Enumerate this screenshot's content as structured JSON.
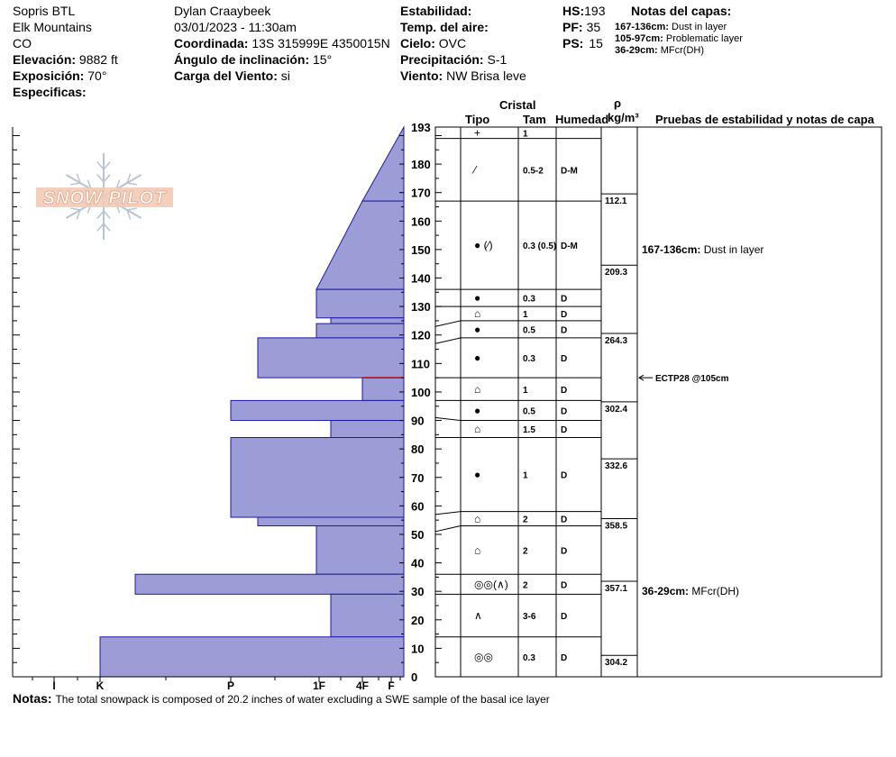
{
  "header": {
    "site": "Sopris BTL",
    "range": "Elk Mountains",
    "state": "CO",
    "elevation_label": "Elevación:",
    "elevation_value": "9882 ft",
    "aspect_label": "Exposición:",
    "aspect_value": "70°",
    "specifics_label": "Especificas:",
    "observer": "Dylan Craaybeek",
    "datetime": "03/01/2023 - 11:30am",
    "coord_label": "Coordinada:",
    "coord_value": "13S 315999E 4350015N",
    "slope_label": "Ángulo de inclinación:",
    "slope_value": "15°",
    "wind_load_label": "Carga del Viento:",
    "wind_load_value": "si",
    "stability_label": "Estabilidad:",
    "airtemp_label": "Temp. del aire:",
    "sky_label": "Cielo:",
    "sky_value": "OVC",
    "precip_label": "Precipitación:",
    "precip_value": "S-1",
    "wind_label": "Viento:",
    "wind_value": "NW Brisa leve",
    "hs_label": "HS:",
    "hs_value": "193",
    "pf_label": "PF:",
    "pf_value": "35",
    "ps_label": "PS:",
    "ps_value": "15",
    "layer_notes_title": "Notas del capas:",
    "layer_notes": [
      {
        "range": "167-136cm:",
        "text": "Dust in layer"
      },
      {
        "range": "105-97cm:",
        "text": "Problematic layer"
      },
      {
        "range": "36-29cm:",
        "text": "MFcr(DH)"
      }
    ]
  },
  "logo_text": "SNOW PILOT",
  "columns": {
    "crystal": "Cristal",
    "type": "Tipo",
    "size": "Tam",
    "moisture": "Humedad",
    "rho": "ρ",
    "density_unit": "kg/m³",
    "tests": "Pruebas de estabilidad y notas de capa"
  },
  "hardness_labels": [
    "I",
    "K",
    "P",
    "1F",
    "4F",
    "F"
  ],
  "height_ticks": [
    "193",
    "180",
    "170",
    "160",
    "150",
    "140",
    "130",
    "120",
    "110",
    "100",
    "90",
    "80",
    "70",
    "60",
    "50",
    "40",
    "30",
    "20",
    "10",
    "0"
  ],
  "chart_data": {
    "type": "snow_profile",
    "total_height_cm": 193,
    "hardness_profile": [
      {
        "top": 193,
        "bottom": 167,
        "hardness_top": "F",
        "hardness_bottom": "4F"
      },
      {
        "top": 167,
        "bottom": 136,
        "hardness_top": "4F",
        "hardness_bottom": "1F"
      },
      {
        "top": 136,
        "bottom": 126,
        "hardness": "1F"
      },
      {
        "top": 126,
        "bottom": 124,
        "hardness": "1F+"
      },
      {
        "top": 124,
        "bottom": 119,
        "hardness": "1F"
      },
      {
        "top": 119,
        "bottom": 105,
        "hardness": "P+"
      },
      {
        "top": 105,
        "bottom": 97,
        "hardness": "4F"
      },
      {
        "top": 97,
        "bottom": 90,
        "hardness": "P"
      },
      {
        "top": 90,
        "bottom": 84,
        "hardness": "1F+"
      },
      {
        "top": 84,
        "bottom": 56,
        "hardness": "P"
      },
      {
        "top": 56,
        "bottom": 53,
        "hardness": "P+"
      },
      {
        "top": 53,
        "bottom": 36,
        "hardness": "1F"
      },
      {
        "top": 36,
        "bottom": 29,
        "hardness": "K+"
      },
      {
        "top": 29,
        "bottom": 14,
        "hardness": "1F+"
      },
      {
        "top": 14,
        "bottom": 0,
        "hardness": "K"
      }
    ],
    "critical_layer_cm": 105,
    "layers": [
      {
        "top": 193,
        "bottom": 189,
        "type": "+",
        "size": "1",
        "moisture": ""
      },
      {
        "top": 189,
        "bottom": 167,
        "type": "⁄",
        "size": "0.5-2",
        "moisture": "D-M"
      },
      {
        "top": 167,
        "bottom": 136,
        "type": "● (⁄)",
        "size": "0.3 (0.5)",
        "moisture": "D-M"
      },
      {
        "top": 136,
        "bottom": 130,
        "type": "●",
        "size": "0.3",
        "moisture": "D"
      },
      {
        "top": 130,
        "bottom": 123,
        "type": "⌂",
        "size": "1",
        "moisture": "D"
      },
      {
        "top": 123,
        "bottom": 117,
        "type": "●",
        "size": "0.5",
        "moisture": "D"
      },
      {
        "top": 117,
        "bottom": 105,
        "type": "●",
        "size": "0.3",
        "moisture": "D"
      },
      {
        "top": 105,
        "bottom": 97,
        "type": "⌂",
        "size": "1",
        "moisture": "D"
      },
      {
        "top": 97,
        "bottom": 91,
        "type": "●",
        "size": "0.5",
        "moisture": "D"
      },
      {
        "top": 91,
        "bottom": 84,
        "type": "⌂",
        "size": "1.5",
        "moisture": "D"
      },
      {
        "top": 84,
        "bottom": 57,
        "type": "●",
        "size": "1",
        "moisture": "D"
      },
      {
        "top": 57,
        "bottom": 51,
        "type": "⌂",
        "size": "2",
        "moisture": "D"
      },
      {
        "top": 51,
        "bottom": 36,
        "type": "⌂",
        "size": "2",
        "moisture": "D"
      },
      {
        "top": 36,
        "bottom": 29,
        "type": "◎◎(∧)",
        "size": "2",
        "moisture": "D"
      },
      {
        "top": 29,
        "bottom": 14,
        "type": "∧",
        "size": "3-6",
        "moisture": "D"
      },
      {
        "top": 14,
        "bottom": 0,
        "type": "◎◎",
        "size": "0.3",
        "moisture": "D"
      }
    ],
    "boundary_depths": [
      189,
      167,
      136,
      130,
      123,
      117,
      105,
      97,
      91,
      84,
      57,
      51,
      36,
      29,
      14
    ],
    "boundary_depths_right": [
      189,
      167,
      136,
      130,
      125,
      119,
      105,
      97,
      90,
      84,
      58,
      53,
      36,
      29,
      14
    ],
    "densities": [
      {
        "height": 167,
        "value": "112.1"
      },
      {
        "height": 142,
        "value": "209.3"
      },
      {
        "height": 118,
        "value": "264.3"
      },
      {
        "height": 94,
        "value": "302.4"
      },
      {
        "height": 74,
        "value": "332.6"
      },
      {
        "height": 53,
        "value": "358.5"
      },
      {
        "height": 31,
        "value": "357.1"
      },
      {
        "height": 5,
        "value": "304.2"
      }
    ],
    "test_notes": [
      {
        "height": 150,
        "bold": "167-136cm:",
        "text": "Dust in layer"
      },
      {
        "height": 30,
        "bold": "36-29cm:",
        "text": "MFcr(DH)"
      }
    ],
    "stability_tests": [
      {
        "height": 105,
        "text": "ECTP28 @105cm"
      }
    ]
  },
  "notes_label": "Notas:",
  "notes_text": "The total snowpack is composed of 20.2 inches of water excluding a SWE sample of the basal ice layer",
  "colors": {
    "fill": "#9c9cd6",
    "stroke": "#1a1aa8",
    "critical": "#cc0000"
  }
}
